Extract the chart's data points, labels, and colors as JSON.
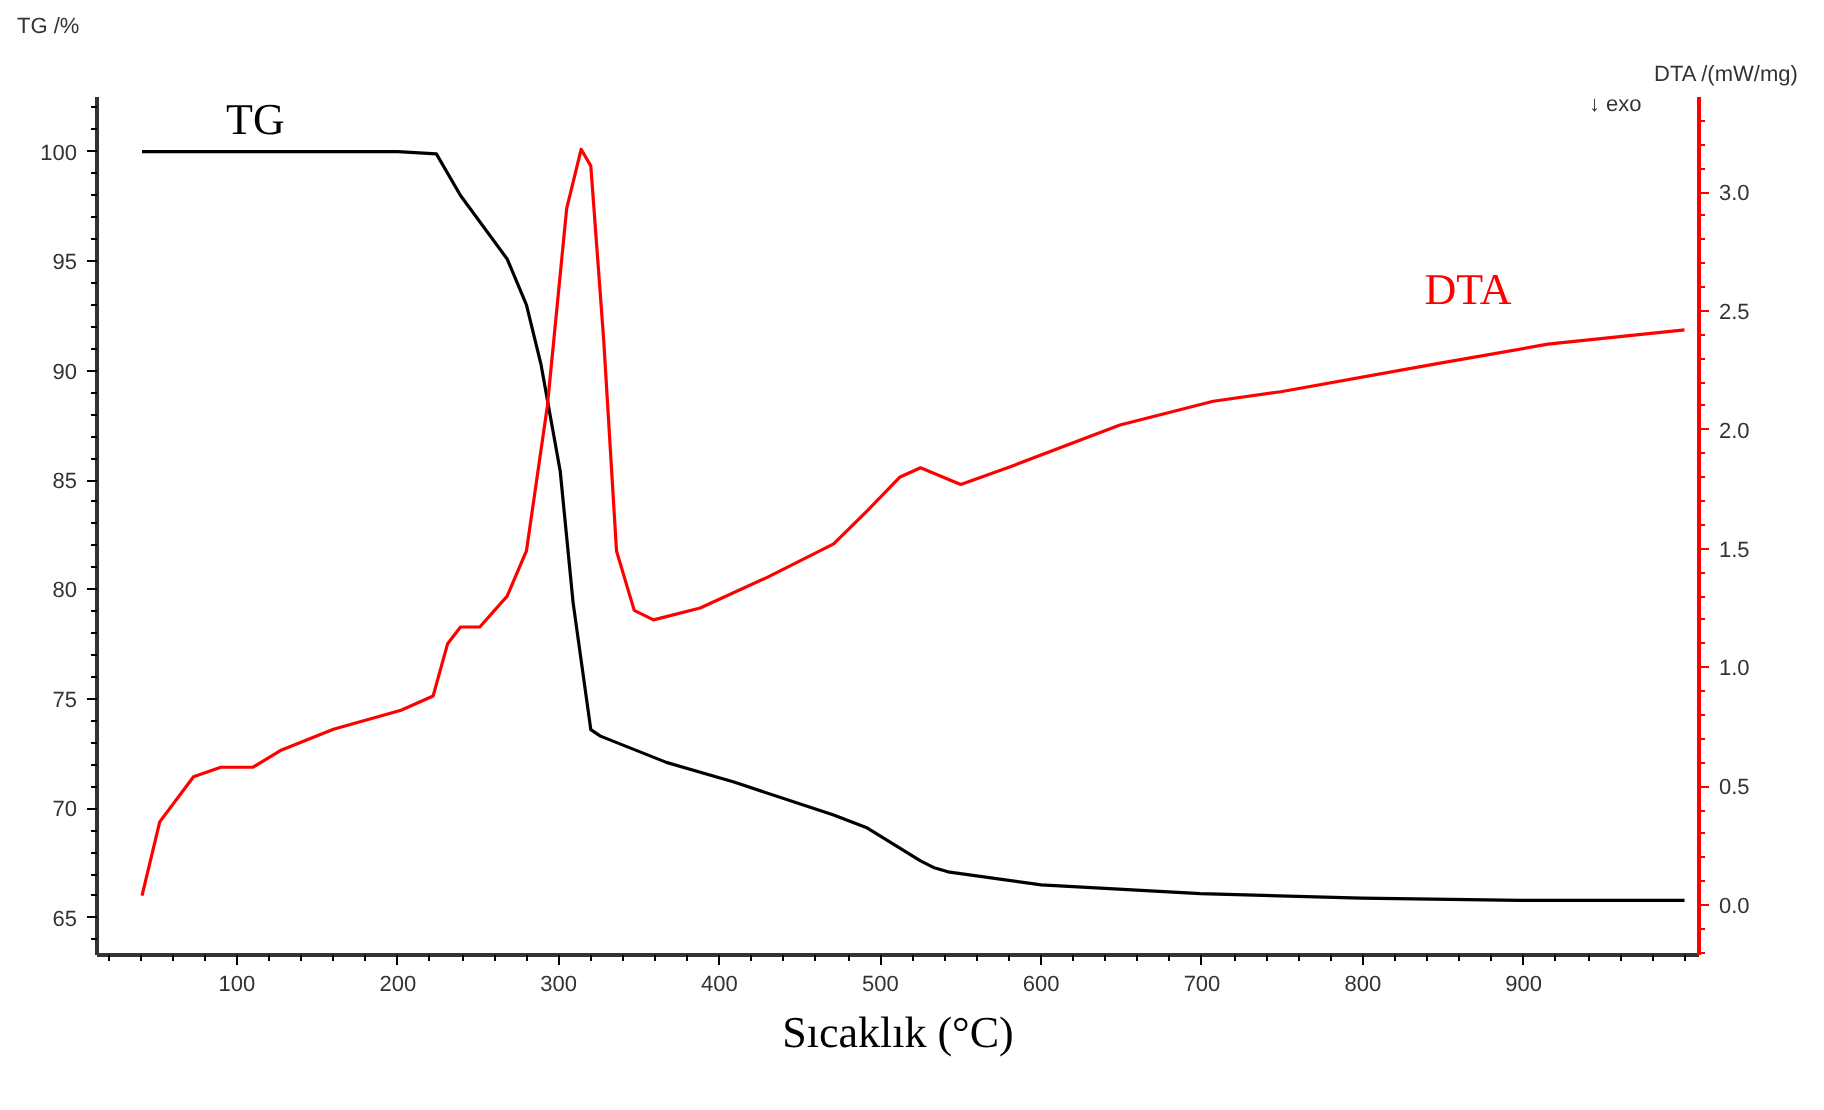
{
  "chart_data": {
    "type": "line",
    "xlabel": "Sıcaklık (°C)",
    "ylabel": "TG /%",
    "y2label": "DTA /(mW/mg)",
    "xlim": [
      13,
      1009
    ],
    "ylim": [
      63.3,
      102.5
    ],
    "y2lim": [
      -0.21,
      3.4
    ],
    "xticks": [
      100,
      200,
      300,
      400,
      500,
      600,
      700,
      800,
      900
    ],
    "yticks": [
      65,
      70,
      75,
      80,
      85,
      90,
      95,
      100
    ],
    "y2ticks": [
      {
        "value": 0,
        "label": "0.0"
      },
      {
        "value": 0.5,
        "label": "0.5"
      },
      {
        "value": 1,
        "label": "1.0"
      },
      {
        "value": 1.5,
        "label": "1.5"
      },
      {
        "value": 2,
        "label": "2.0"
      },
      {
        "value": 2.5,
        "label": "2.5"
      },
      {
        "value": 3,
        "label": "3.0"
      }
    ],
    "grid": false,
    "marker": "none",
    "line_style": "solid",
    "annotations": [
      "↓ exo"
    ],
    "series": [
      {
        "name": "TG",
        "color": "#000000",
        "x": [
          41,
          100,
          200,
          224,
          239,
          268,
          280,
          289,
          301,
          309,
          320,
          326,
          367,
          409,
          471,
          492,
          525,
          533,
          542,
          600,
          699,
          799,
          898,
          1000
        ],
        "values": [
          100,
          100,
          100,
          99.9,
          98.0,
          95.1,
          93.0,
          90.3,
          85.4,
          79.4,
          73.6,
          73.3,
          72.1,
          71.2,
          69.7,
          69.1,
          67.6,
          67.3,
          67.1,
          66.5,
          66.1,
          65.9,
          65.8,
          65.8
        ]
      },
      {
        "name": "DTA",
        "color": "#ff0000",
        "axis": "y2",
        "x": [
          41,
          52,
          73,
          90,
          110,
          127,
          160,
          202,
          222,
          231,
          239,
          251,
          268,
          280,
          293,
          305,
          314,
          320,
          328,
          336,
          347,
          359,
          388,
          430,
          471,
          492,
          512,
          525,
          550,
          583,
          649,
          707,
          749,
          848,
          915,
          1000
        ],
        "values": [
          0.04,
          0.35,
          0.54,
          0.58,
          0.58,
          0.65,
          0.74,
          0.82,
          0.88,
          1.1,
          1.17,
          1.17,
          1.3,
          1.49,
          2.1,
          2.93,
          3.18,
          3.11,
          2.38,
          1.49,
          1.24,
          1.2,
          1.25,
          1.38,
          1.52,
          1.66,
          1.8,
          1.84,
          1.77,
          1.85,
          2.02,
          2.12,
          2.16,
          2.28,
          2.36,
          2.42
        ]
      }
    ]
  }
}
